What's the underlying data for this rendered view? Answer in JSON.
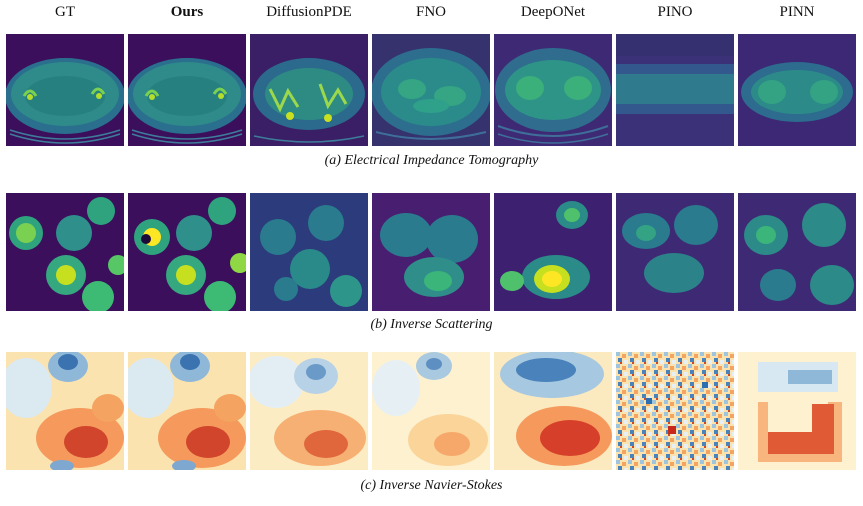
{
  "columns": [
    "GT",
    "Ours",
    "DiffusionPDE",
    "FNO",
    "DeepONet",
    "PINO",
    "PINN"
  ],
  "rows": [
    {
      "caption": "(a) Electrical Impedance Tomography",
      "colormap": "viridis"
    },
    {
      "caption": "(b) Inverse Scattering",
      "colormap": "viridis"
    },
    {
      "caption": "(c) Inverse Navier-Stokes",
      "colormap": "RdYlBu_r"
    }
  ],
  "colors": {
    "viridis_dark": "#440154",
    "viridis_mid": "#21918c",
    "viridis_bright": "#fde725",
    "rdylbu_blue": "#2c6fb0",
    "rdylbu_red": "#c8281c"
  }
}
